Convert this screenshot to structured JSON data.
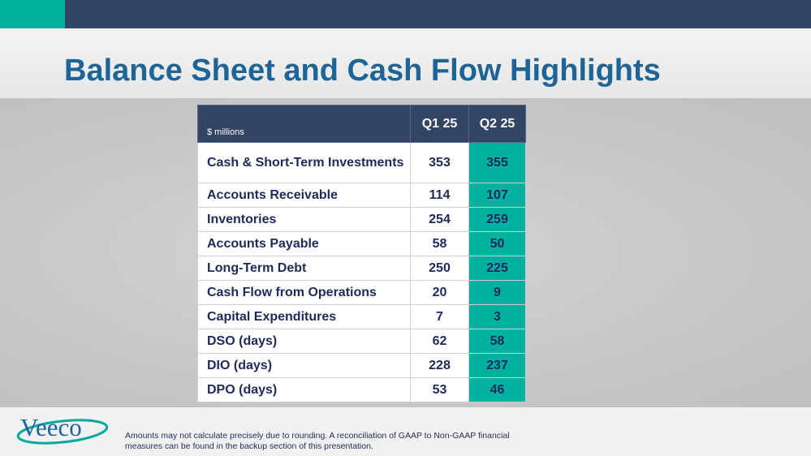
{
  "slide": {
    "title": "Balance Sheet and Cash Flow Highlights",
    "colors": {
      "header_bar": "#344465",
      "accent": "#00b0a0",
      "title_text": "#1e6496",
      "table_text": "#1f2a5a"
    }
  },
  "table": {
    "unit_label": "$ millions",
    "columns": [
      "Q1 25",
      "Q2 25"
    ],
    "rows": [
      {
        "label": "Cash & Short-Term Investments",
        "q1": "353",
        "q2": "355"
      },
      {
        "label": "Accounts Receivable",
        "q1": "114",
        "q2": "107"
      },
      {
        "label": "Inventories",
        "q1": "254",
        "q2": "259"
      },
      {
        "label": "Accounts Payable",
        "q1": "58",
        "q2": "50"
      },
      {
        "label": "Long-Term Debt",
        "q1": "250",
        "q2": "225"
      },
      {
        "label": "Cash Flow from Operations",
        "q1": "20",
        "q2": "9"
      },
      {
        "label": "Capital Expenditures",
        "q1": "7",
        "q2": "3"
      },
      {
        "label": "DSO (days)",
        "q1": "62",
        "q2": "58"
      },
      {
        "label": "DIO (days)",
        "q1": "228",
        "q2": "237"
      },
      {
        "label": "DPO (days)",
        "q1": "53",
        "q2": "46"
      }
    ]
  },
  "footer": {
    "logo_text": "Veeco",
    "note": "Amounts may not calculate precisely due to rounding.  A reconciliation of GAAP to Non-GAAP financial measures can be found in the backup section of this presentation."
  }
}
